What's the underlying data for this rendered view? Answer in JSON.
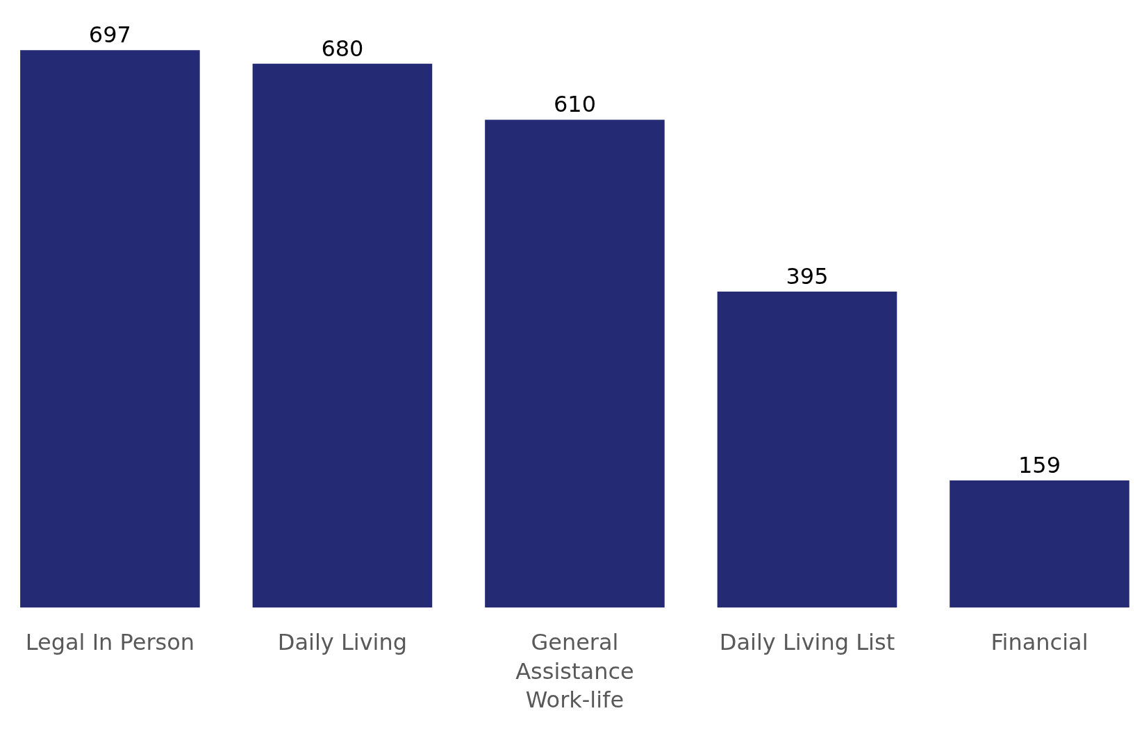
{
  "chart_data": {
    "type": "bar",
    "categories": [
      "Legal In Person",
      "Daily Living",
      "General Assistance Work-life",
      "Daily Living List",
      "Financial"
    ],
    "values": [
      697,
      680,
      610,
      395,
      159
    ],
    "color": "#242a73",
    "data_labels": true
  }
}
